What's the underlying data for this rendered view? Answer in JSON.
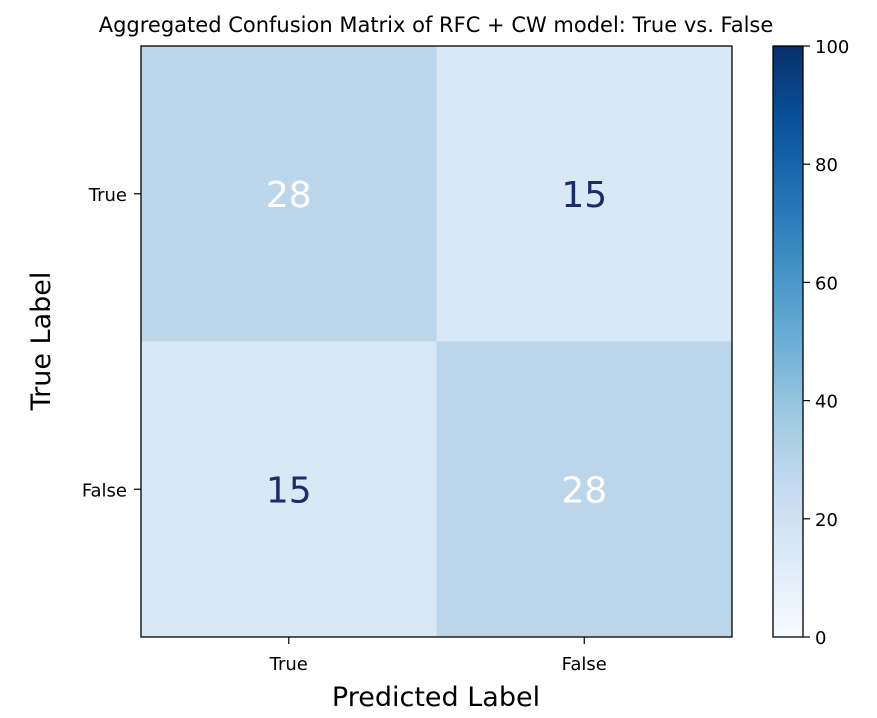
{
  "chart_data": {
    "type": "heatmap",
    "title": "Aggregated Confusion Matrix of RFC + CW model: True vs. False",
    "xlabel": "Predicted Label",
    "ylabel": "True Label",
    "x_categories": [
      "True",
      "False"
    ],
    "y_categories": [
      "True",
      "False"
    ],
    "values": [
      [
        28,
        15
      ],
      [
        15,
        28
      ]
    ],
    "colorbar": {
      "range": [
        0,
        100
      ],
      "ticks": [
        "0",
        "20",
        "40",
        "60",
        "80",
        "100"
      ],
      "colormap": "Blues",
      "colormap_stops": [
        "#f7fbff",
        "#deebf7",
        "#c6dbef",
        "#9ecae1",
        "#6baed6",
        "#4292c6",
        "#2171b5",
        "#08519c",
        "#08306b"
      ]
    },
    "text_colors": {
      "on_dark": "#ffffff",
      "on_light": "#1c2c6b"
    },
    "grid": false
  }
}
